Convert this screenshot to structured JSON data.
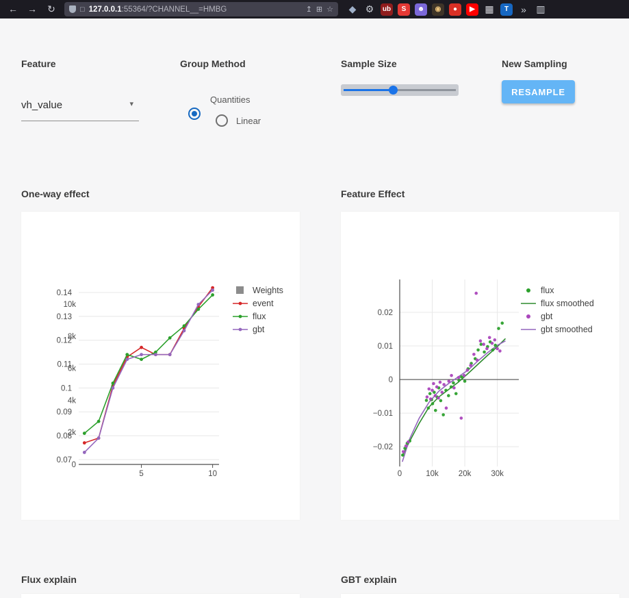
{
  "browser": {
    "back_glyph": "←",
    "forward_glyph": "→",
    "refresh_glyph": "↻",
    "page_glyph": "□",
    "share_glyph": "↥",
    "translate_glyph": "⊞",
    "star_glyph": "☆",
    "url_host": "127.0.0.1",
    "url_rest": ":55364/?CHANNEL__=HMBG",
    "extensions": [
      {
        "name": "shield-extension-icon",
        "label": "◆",
        "bg": "transparent",
        "fg": "#9fb0c8"
      },
      {
        "name": "wrench-extension-icon",
        "label": "⚙",
        "bg": "transparent",
        "fg": "#c9ced6"
      },
      {
        "name": "ublock-extension-icon",
        "label": "ub",
        "bg": "#8f1d1d",
        "fg": "#ffffff"
      },
      {
        "name": "s-extension-icon",
        "label": "S",
        "bg": "#e53935",
        "fg": "#ffffff"
      },
      {
        "name": "ghost-extension-icon",
        "label": "☻",
        "bg": "#7b68d9",
        "fg": "#ffffff"
      },
      {
        "name": "monkey-extension-icon",
        "label": "◉",
        "bg": "#3e3428",
        "fg": "#e8c07a"
      },
      {
        "name": "pin-extension-icon",
        "label": "●",
        "bg": "#d93025",
        "fg": "#ffffff"
      },
      {
        "name": "youtube-extension-icon",
        "label": "▶",
        "bg": "#ff0000",
        "fg": "#ffffff"
      },
      {
        "name": "grid-extension-icon",
        "label": "▦",
        "bg": "transparent",
        "fg": "#d6d6dc"
      },
      {
        "name": "t-extension-icon",
        "label": "T",
        "bg": "#1667c2",
        "fg": "#ffffff"
      },
      {
        "name": "overflow-chevron-icon",
        "label": "»",
        "bg": "transparent",
        "fg": "#c9ced6"
      },
      {
        "name": "sidebar-extension-icon",
        "label": "▥",
        "bg": "transparent",
        "fg": "#c9ced6"
      }
    ]
  },
  "controls": {
    "feature": {
      "label": "Feature",
      "value": "vh_value",
      "caret_glyph": "▾"
    },
    "group_method": {
      "label": "Group Method",
      "options": [
        {
          "label": "Quantities",
          "selected": true
        },
        {
          "label": "Linear",
          "selected": false
        }
      ]
    },
    "sample_size": {
      "label": "Sample Size",
      "fraction": 0.44
    },
    "new_sampling": {
      "label": "New Sampling",
      "button": "RESAMPLE"
    }
  },
  "sections": {
    "oneway": "One-way effect",
    "feature_effect": "Feature Effect",
    "flux_explain": "Flux explain",
    "gbt_explain": "GBT explain"
  },
  "chart_data": [
    {
      "type": "line",
      "title": "One-way effect",
      "x": [
        1,
        2,
        3,
        4,
        5,
        6,
        7,
        8,
        9,
        10
      ],
      "series": [
        {
          "name": "event",
          "color": "#d62728",
          "values": [
            0.077,
            0.079,
            0.101,
            0.113,
            0.117,
            0.114,
            0.114,
            0.125,
            0.134,
            0.142
          ]
        },
        {
          "name": "flux",
          "color": "#2ca02c",
          "values": [
            0.081,
            0.086,
            0.102,
            0.114,
            0.112,
            0.115,
            0.121,
            0.126,
            0.133,
            0.139
          ]
        },
        {
          "name": "gbt",
          "color": "#9467bd",
          "values": [
            0.073,
            0.079,
            0.1,
            0.112,
            0.114,
            0.114,
            0.114,
            0.124,
            0.135,
            0.141
          ]
        }
      ],
      "weights_legend": {
        "name": "Weights",
        "color": "#8c8c8c"
      },
      "yticks": [
        0.07,
        0.08,
        0.09,
        0.1,
        0.11,
        0.12,
        0.13,
        0.14
      ],
      "ytick_labels": [
        "0.07",
        "0.08",
        "0.09",
        "0.1",
        "0.11",
        "0.12",
        "0.13",
        "0.14"
      ],
      "y2ticks": [
        0,
        2000,
        4000,
        6000,
        8000,
        10000
      ],
      "y2tick_labels": [
        "0",
        "2k",
        "4k",
        "6k",
        "8k",
        "10k"
      ],
      "y2lim": [
        0,
        10000
      ],
      "xticks": [
        5,
        10
      ],
      "xtick_labels": [
        "5",
        "10"
      ],
      "xlim": [
        0.6,
        10.45
      ],
      "ylim": [
        0.0671,
        0.1426
      ]
    },
    {
      "type": "scatter",
      "title": "Feature Effect",
      "series": [
        {
          "name": "flux smoothed",
          "mode": "line",
          "color": "#2e8b2e",
          "points": [
            [
              800,
              -0.0228
            ],
            [
              3000,
              -0.0185
            ],
            [
              6000,
              -0.013
            ],
            [
              9000,
              -0.0082
            ],
            [
              12000,
              -0.0052
            ],
            [
              15000,
              -0.003
            ],
            [
              18000,
              -0.0008
            ],
            [
              21000,
              0.0018
            ],
            [
              24000,
              0.0045
            ],
            [
              27000,
              0.0072
            ],
            [
              30000,
              0.0098
            ],
            [
              32500,
              0.0122
            ]
          ]
        },
        {
          "name": "gbt smoothed",
          "mode": "line",
          "color": "#9467bd",
          "points": [
            [
              800,
              -0.0245
            ],
            [
              3000,
              -0.0178
            ],
            [
              6000,
              -0.0115
            ],
            [
              9000,
              -0.0068
            ],
            [
              12000,
              -0.0035
            ],
            [
              15000,
              -0.0012
            ],
            [
              18000,
              0.0008
            ],
            [
              21000,
              0.0028
            ],
            [
              24000,
              0.0055
            ],
            [
              27000,
              0.008
            ],
            [
              30000,
              0.0102
            ],
            [
              32500,
              0.0115
            ]
          ]
        },
        {
          "name": "flux",
          "mode": "markers",
          "color": "#2ca02c",
          "points": [
            [
              900,
              -0.0225
            ],
            [
              1600,
              -0.0205
            ],
            [
              2300,
              -0.019
            ],
            [
              3100,
              -0.0183
            ],
            [
              8200,
              -0.0062
            ],
            [
              8800,
              -0.0085
            ],
            [
              9300,
              -0.0042
            ],
            [
              9800,
              -0.006
            ],
            [
              10100,
              -0.0072
            ],
            [
              10600,
              -0.0038
            ],
            [
              11000,
              -0.0092
            ],
            [
              11500,
              -0.0052
            ],
            [
              12000,
              -0.0025
            ],
            [
              12600,
              -0.0063
            ],
            [
              13400,
              -0.0105
            ],
            [
              14200,
              -0.0032
            ],
            [
              15000,
              -0.0048
            ],
            [
              15800,
              -0.0022
            ],
            [
              16500,
              -0.001
            ],
            [
              17300,
              -0.0042
            ],
            [
              18200,
              -0.0002
            ],
            [
              19000,
              0.0008
            ],
            [
              20000,
              -0.0005
            ],
            [
              21000,
              0.0032
            ],
            [
              22000,
              0.0048
            ],
            [
              23200,
              0.0062
            ],
            [
              24100,
              0.0088
            ],
            [
              25000,
              0.0105
            ],
            [
              26000,
              0.0082
            ],
            [
              27000,
              0.0098
            ],
            [
              27800,
              0.0112
            ],
            [
              28600,
              0.0088
            ],
            [
              29400,
              0.0102
            ],
            [
              30400,
              0.0152
            ],
            [
              31500,
              0.0168
            ]
          ]
        },
        {
          "name": "gbt",
          "mode": "markers",
          "color": "#ab47bc",
          "points": [
            [
              1100,
              -0.0215
            ],
            [
              1900,
              -0.0198
            ],
            [
              2600,
              -0.0186
            ],
            [
              8400,
              -0.0052
            ],
            [
              9000,
              -0.0028
            ],
            [
              9500,
              -0.0058
            ],
            [
              10000,
              -0.0032
            ],
            [
              10400,
              -0.0012
            ],
            [
              10900,
              -0.0048
            ],
            [
              11400,
              -0.0022
            ],
            [
              11900,
              -0.0055
            ],
            [
              12400,
              -0.0008
            ],
            [
              13000,
              -0.0038
            ],
            [
              13600,
              -0.0015
            ],
            [
              14300,
              -0.0085
            ],
            [
              15100,
              -0.0005
            ],
            [
              15900,
              0.0012
            ],
            [
              16700,
              -0.0025
            ],
            [
              18100,
              0.0006
            ],
            [
              18900,
              -0.0115
            ],
            [
              19800,
              0.0012
            ],
            [
              20800,
              0.0028
            ],
            [
              21800,
              0.0042
            ],
            [
              22800,
              0.0075
            ],
            [
              23500,
              0.0257
            ],
            [
              23800,
              0.0058
            ],
            [
              24800,
              0.0115
            ],
            [
              25800,
              0.0105
            ],
            [
              26800,
              0.0092
            ],
            [
              27600,
              0.0125
            ],
            [
              28400,
              0.0108
            ],
            [
              29200,
              0.0118
            ],
            [
              30000,
              0.0092
            ],
            [
              30800,
              0.0085
            ]
          ]
        }
      ],
      "legend_order": [
        "flux",
        "flux smoothed",
        "gbt",
        "gbt smoothed"
      ],
      "xticks": [
        0,
        10000,
        20000,
        30000
      ],
      "xtick_labels": [
        "0",
        "10k",
        "20k",
        "30k"
      ],
      "yticks": [
        -0.02,
        -0.01,
        0,
        0.01,
        0.02
      ],
      "ytick_labels": [
        "−0.02",
        "−0.01",
        "0",
        "0.01",
        "0.02"
      ],
      "xlim": [
        0,
        36600
      ],
      "ylim": [
        -0.0259,
        0.0298
      ]
    }
  ]
}
